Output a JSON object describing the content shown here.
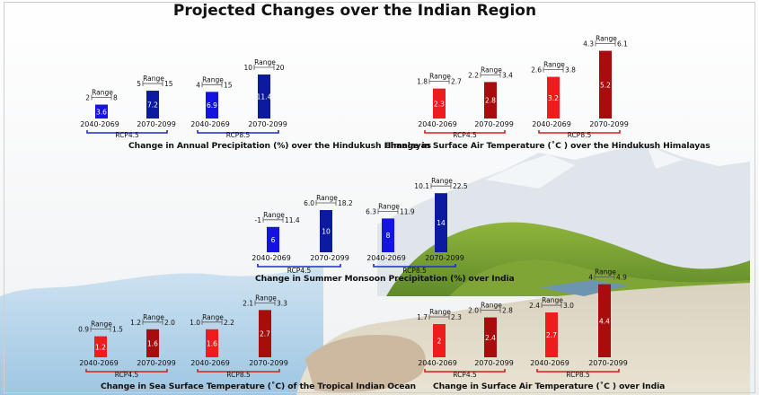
{
  "title": "Projected Changes over the Indian Region",
  "colors": {
    "precip_near": "#1414e0",
    "precip_far": "#0c1aa0",
    "temp_near": "#ee1c1c",
    "temp_far": "#a80c0c",
    "bracket_precip": "#1c2cd0",
    "bracket_temp": "#dd1c1c"
  },
  "range_label": "Range",
  "chart_data": [
    {
      "id": "hindukush-precip",
      "type": "bar",
      "title": "Change in Annual Precipitation (%) over the Hindukush Himalayas",
      "scenarios": [
        "RCP4.5",
        "RCP8.5"
      ],
      "categories": [
        "2040-2069",
        "2070-2099",
        "2040-2069",
        "2070-2099"
      ],
      "values": [
        3.6,
        7.2,
        6.9,
        11.4
      ],
      "range_low": [
        "2",
        "5",
        "4",
        "10"
      ],
      "range_high": [
        "8",
        "15",
        "15",
        "20"
      ],
      "color_group": "precip"
    },
    {
      "id": "hindukush-temp",
      "type": "bar",
      "title": "Change in Surface Air Temperature (˚C ) over the Hindukush Himalayas",
      "scenarios": [
        "RCP4.5",
        "RCP8.5"
      ],
      "categories": [
        "2040-2069",
        "2070-2099",
        "2040-2069",
        "2070-2099"
      ],
      "values": [
        2.3,
        2.8,
        3.2,
        5.2
      ],
      "range_low": [
        "1.8",
        "2.2",
        "2.6",
        "4.3"
      ],
      "range_high": [
        "2.7",
        "3.4",
        "3.8",
        "6.1"
      ],
      "color_group": "temp"
    },
    {
      "id": "monsoon-precip",
      "type": "bar",
      "title": "Change in Summer Monsoon Precipitation (%) over India",
      "scenarios": [
        "RCP4.5",
        "RCP8.5"
      ],
      "categories": [
        "2040-2069",
        "2070-2099",
        "2040-2069",
        "2070-2099"
      ],
      "values": [
        6,
        10,
        8,
        14
      ],
      "range_low": [
        "-1",
        "6.0",
        "6.3",
        "10.1"
      ],
      "range_high": [
        "11.4",
        "18.2",
        "11.9",
        "22.5"
      ],
      "color_group": "precip"
    },
    {
      "id": "ocean-sst",
      "type": "bar",
      "title": "Change in Sea Surface Temperature (˚C) of the Tropical Indian Ocean",
      "scenarios": [
        "RCP4.5",
        "RCP8.5"
      ],
      "categories": [
        "2040-2069",
        "2070-2099",
        "2040-2069",
        "2070-2099"
      ],
      "values": [
        1.2,
        1.6,
        1.6,
        2.7
      ],
      "range_low": [
        "0.9",
        "1.2",
        "1.0",
        "2.1"
      ],
      "range_high": [
        "1.5",
        "2.0",
        "2.2",
        "3.3"
      ],
      "color_group": "temp"
    },
    {
      "id": "india-temp",
      "type": "bar",
      "title": "Change in Surface Air Temperature (˚C ) over India",
      "scenarios": [
        "RCP4.5",
        "RCP8.5"
      ],
      "categories": [
        "2040-2069",
        "2070-2099",
        "2040-2069",
        "2070-2099"
      ],
      "values": [
        2,
        2.4,
        2.7,
        4.4
      ],
      "range_low": [
        "1.7",
        "2.0",
        "2.4",
        "4"
      ],
      "range_high": [
        "2.3",
        "2.8",
        "3.0",
        "4.9"
      ],
      "color_group": "temp"
    }
  ]
}
